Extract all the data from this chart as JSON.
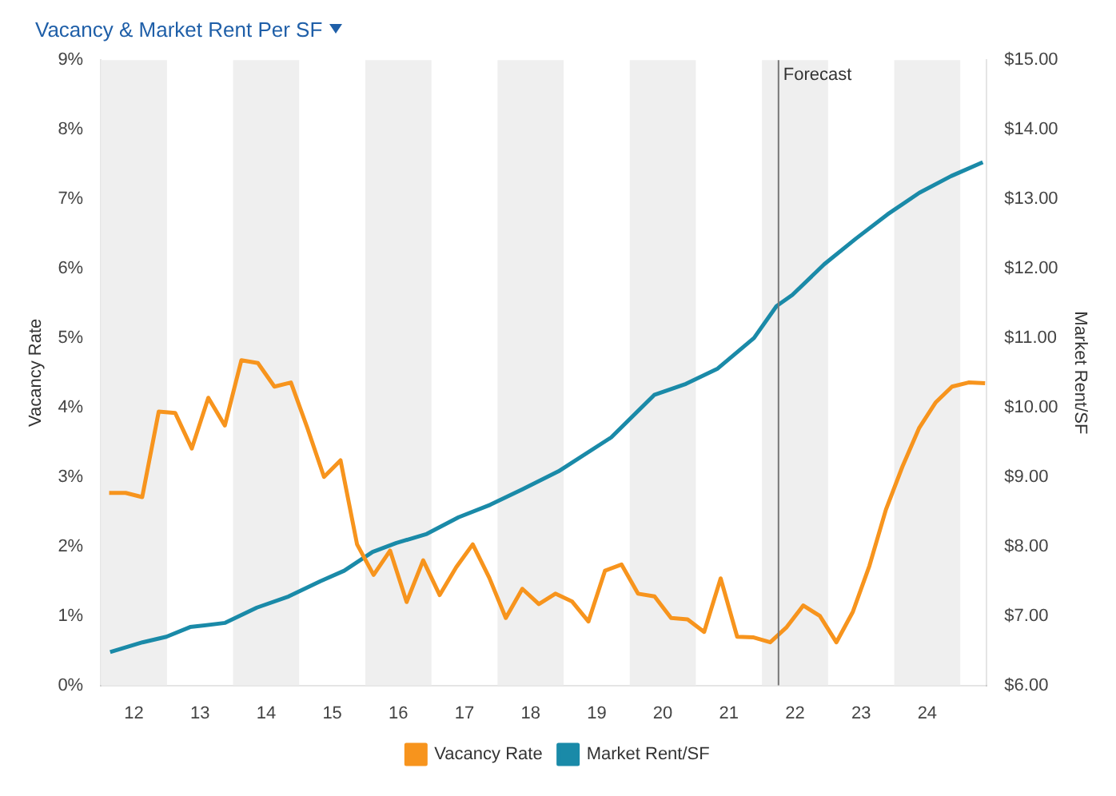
{
  "chart_data": {
    "type": "line",
    "title": "Vacancy & Market Rent Per SF",
    "xlabel": null,
    "ylabel": "Vacancy Rate",
    "y2label": "Market Rent/SF",
    "x": [
      11.625,
      11.875,
      12.125,
      12.375,
      12.625,
      12.875,
      13.125,
      13.375,
      13.625,
      13.875,
      14.125,
      14.375,
      14.625,
      14.875,
      15.125,
      15.375,
      15.625,
      15.875,
      16.125,
      16.375,
      16.625,
      16.875,
      17.125,
      17.375,
      17.625,
      17.875,
      18.125,
      18.375,
      18.625,
      18.875,
      19.125,
      19.375,
      19.625,
      19.875,
      20.125,
      20.375,
      20.625,
      20.875,
      21.125,
      21.375,
      21.625,
      21.875,
      22.125,
      22.375,
      22.625,
      22.875,
      23.125,
      23.375,
      23.625,
      23.875,
      24.125,
      24.375,
      24.625,
      24.875
    ],
    "series": [
      {
        "name": "Vacancy Rate",
        "color": "#f7941d",
        "values": [
          2.77,
          2.77,
          2.71,
          3.94,
          3.92,
          3.41,
          4.14,
          3.74,
          4.68,
          4.64,
          4.3,
          4.36,
          3.7,
          3.0,
          3.24,
          2.03,
          1.59,
          1.94,
          1.2,
          1.8,
          1.3,
          1.7,
          2.03,
          1.55,
          0.97,
          1.39,
          1.17,
          1.32,
          1.21,
          0.92,
          1.65,
          1.74,
          1.32,
          1.28,
          0.97,
          0.95,
          0.77,
          1.54,
          0.7,
          0.69,
          0.62,
          0.84,
          1.15,
          1.0,
          0.62,
          1.06,
          1.72,
          2.53,
          3.15,
          3.7,
          4.07,
          4.3,
          4.36,
          4.35
        ]
      },
      {
        "name": "Market Rent/SF",
        "color": "#1a8aa8",
        "axis": "y2",
        "x": [
          11.64,
          12.13,
          12.49,
          12.85,
          13.38,
          13.86,
          14.34,
          14.82,
          15.18,
          15.61,
          15.97,
          16.43,
          16.91,
          17.39,
          17.87,
          18.42,
          19.22,
          19.87,
          20.35,
          20.83,
          21.38,
          21.72,
          21.96,
          22.44,
          22.92,
          23.4,
          23.88,
          24.36,
          24.84
        ],
        "values": [
          6.48,
          6.62,
          6.7,
          6.84,
          6.9,
          7.12,
          7.28,
          7.5,
          7.65,
          7.92,
          8.05,
          8.18,
          8.42,
          8.6,
          8.82,
          9.08,
          9.57,
          10.18,
          10.34,
          10.56,
          11.0,
          11.46,
          11.62,
          12.06,
          12.43,
          12.78,
          13.09,
          13.33,
          13.53
        ]
      }
    ],
    "xlim": [
      11.5,
      24.9
    ],
    "xticks": [
      12,
      13,
      14,
      15,
      16,
      17,
      18,
      19,
      20,
      21,
      22,
      23,
      24
    ],
    "ylim": [
      0,
      9
    ],
    "yticks": [
      {
        "value": 0,
        "label": "0%"
      },
      {
        "value": 1,
        "label": "1%"
      },
      {
        "value": 2,
        "label": "2%"
      },
      {
        "value": 3,
        "label": "3%"
      },
      {
        "value": 4,
        "label": "4%"
      },
      {
        "value": 5,
        "label": "5%"
      },
      {
        "value": 6,
        "label": "6%"
      },
      {
        "value": 7,
        "label": "7%"
      },
      {
        "value": 8,
        "label": "8%"
      },
      {
        "value": 9,
        "label": "9%"
      }
    ],
    "y2lim": [
      6,
      15
    ],
    "y2ticks": [
      {
        "value": 6,
        "label": "$6.00"
      },
      {
        "value": 7,
        "label": "$7.00"
      },
      {
        "value": 8,
        "label": "$8.00"
      },
      {
        "value": 9,
        "label": "$9.00"
      },
      {
        "value": 10,
        "label": "$10.00"
      },
      {
        "value": 11,
        "label": "$11.00"
      },
      {
        "value": 12,
        "label": "$12.00"
      },
      {
        "value": 13,
        "label": "$13.00"
      },
      {
        "value": 14,
        "label": "$14.00"
      },
      {
        "value": 15,
        "label": "$15.00"
      }
    ],
    "bands": [
      {
        "axis": "x",
        "from": 11.5,
        "to": 12.5,
        "color": "#efefef"
      },
      {
        "axis": "x",
        "from": 13.5,
        "to": 14.5,
        "color": "#efefef"
      },
      {
        "axis": "x",
        "from": 15.5,
        "to": 16.5,
        "color": "#efefef"
      },
      {
        "axis": "x",
        "from": 17.5,
        "to": 18.5,
        "color": "#efefef"
      },
      {
        "axis": "x",
        "from": 19.5,
        "to": 20.5,
        "color": "#efefef"
      },
      {
        "axis": "x",
        "from": 21.5,
        "to": 22.5,
        "color": "#efefef"
      },
      {
        "axis": "x",
        "from": 23.5,
        "to": 24.5,
        "color": "#efefef"
      }
    ],
    "ref_lines": [
      {
        "axis": "x",
        "value": 21.75,
        "label": "Forecast",
        "color": "#777777"
      }
    ],
    "grid": false,
    "legend": "bottom",
    "marker": "none",
    "line_style": "solid"
  }
}
